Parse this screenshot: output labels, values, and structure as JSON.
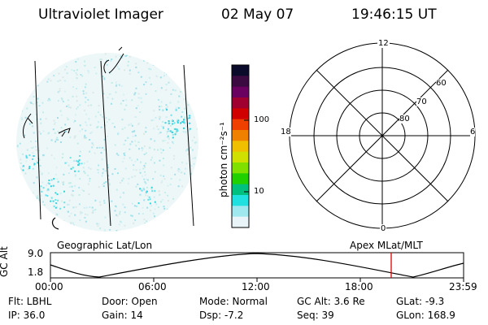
{
  "header": {
    "instrument": "Ultraviolet Imager",
    "date": "02 May 07",
    "time": "19:46:15 UT"
  },
  "colorbar": {
    "label": "photon cm⁻²s⁻¹",
    "ticks": [
      "100",
      "10"
    ],
    "colors": [
      "#0a0a2a",
      "#3a0a40",
      "#6a0060",
      "#a00030",
      "#d00000",
      "#f04000",
      "#f08000",
      "#f0c000",
      "#d0e000",
      "#80e000",
      "#20d000",
      "#00c080",
      "#20e0e0",
      "#a0e8f0",
      "#e8f4f8"
    ]
  },
  "polar_plot": {
    "labels": {
      "top": "12",
      "bottom": "0",
      "left": "18",
      "right": "6"
    },
    "lat_rings": [
      "60",
      "70",
      "80"
    ]
  },
  "timeline": {
    "left_label": "Geographic Lat/Lon",
    "right_label": "Apex MLat/MLT",
    "axis_title": "GC Alt",
    "y_ticks": [
      "9.0",
      "1.8"
    ],
    "x_ticks": [
      "00:00",
      "06:00",
      "12:00",
      "18:00",
      "23:59"
    ],
    "marker_color": "#e00000"
  },
  "info": {
    "row1": {
      "flt": "Flt: LBHL",
      "door": "Door: Open",
      "mode": "Mode: Normal",
      "gcalt": "GC Alt: 3.6 Re",
      "glat": "GLat:  -9.3"
    },
    "row2": {
      "ip": "IP: 36.0",
      "gain": "Gain: 14",
      "dsp": "Dsp:   -7.2",
      "seq": "Seq: 39",
      "glon": "GLon: 168.9"
    }
  }
}
